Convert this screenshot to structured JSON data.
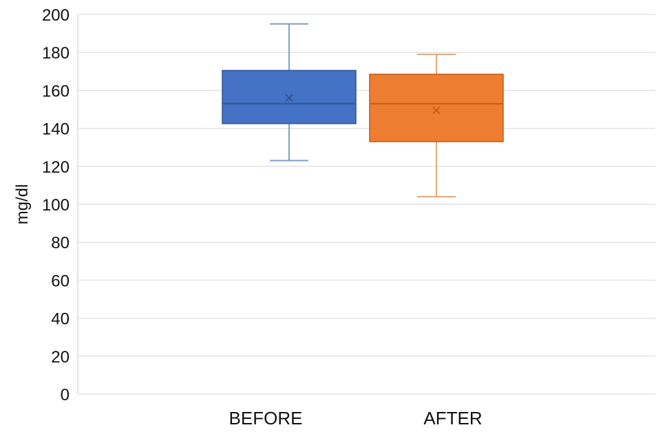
{
  "chart_data": {
    "type": "box",
    "ylabel": "mg/dl",
    "ylim": [
      0,
      200
    ],
    "yticks": [
      0,
      20,
      40,
      60,
      80,
      100,
      120,
      140,
      160,
      180,
      200
    ],
    "ytick_labels": [
      "0",
      "20",
      "40",
      "60",
      "80",
      "100",
      "120",
      "140",
      "160",
      "180",
      "200"
    ],
    "grid": true,
    "categories": [
      "BEFORE",
      "AFTER"
    ],
    "boxes": [
      {
        "category": "BEFORE",
        "min": 123,
        "q1": 142.5,
        "median": 153,
        "q3": 170.5,
        "max": 195,
        "mean": 156,
        "color": "#4472C4",
        "line_color": "#2F5597",
        "whisker_color": "#7F9CC7"
      },
      {
        "category": "AFTER",
        "min": 104,
        "q1": 133,
        "median": 153,
        "q3": 168.5,
        "max": 179,
        "mean": 149.5,
        "color": "#ED7D31",
        "line_color": "#C55A11",
        "whisker_color": "#E5A878"
      }
    ]
  }
}
